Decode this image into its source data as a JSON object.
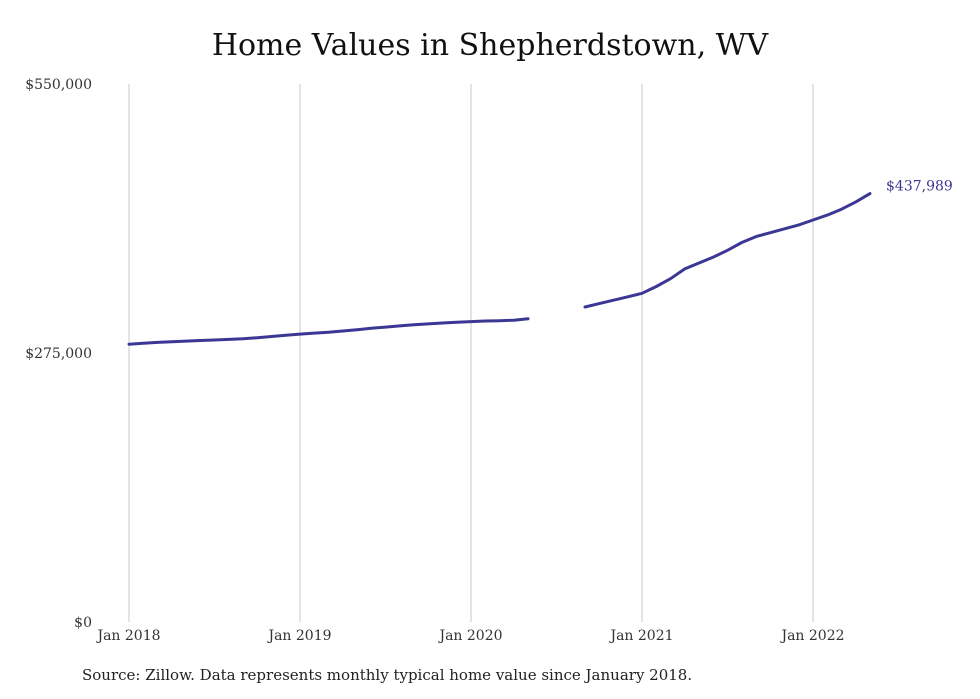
{
  "chart_data": {
    "type": "line",
    "title": "Home Values in Shepherdstown, WV",
    "xlabel": "",
    "ylabel": "",
    "x_ticks": [
      "Jan 2018",
      "Jan 2019",
      "Jan 2020",
      "Jan 2021",
      "Jan 2022"
    ],
    "y_ticks": [
      "$0",
      "$275,000",
      "$550,000"
    ],
    "ylim": [
      0,
      550000
    ],
    "xlim": [
      "2018-01",
      "2022-05"
    ],
    "grid": "vertical",
    "line_color": "#3b3794",
    "series": [
      {
        "segments": [
          {
            "x": [
              "2018-01",
              "2018-02",
              "2018-03",
              "2018-04",
              "2018-05",
              "2018-06",
              "2018-07",
              "2018-08",
              "2018-09",
              "2018-10",
              "2018-11",
              "2018-12",
              "2019-01",
              "2019-02",
              "2019-03",
              "2019-04",
              "2019-05",
              "2019-06",
              "2019-07",
              "2019-08",
              "2019-09",
              "2019-10",
              "2019-11",
              "2019-12",
              "2020-01",
              "2020-02",
              "2020-03",
              "2020-04",
              "2020-05"
            ],
            "y": [
              284000,
              285000,
              285800,
              286500,
              287200,
              287800,
              288300,
              288900,
              289500,
              290600,
              291900,
              293100,
              294300,
              295300,
              296300,
              297500,
              298800,
              300200,
              301500,
              302700,
              303800,
              304800,
              305700,
              306500,
              307100,
              307700,
              308000,
              308500,
              310000
            ]
          },
          {
            "x": [
              "2020-09",
              "2020-10",
              "2020-11",
              "2020-12",
              "2021-01",
              "2021-02",
              "2021-03",
              "2021-04",
              "2021-05",
              "2021-06",
              "2021-07",
              "2021-08",
              "2021-09",
              "2021-10",
              "2021-11",
              "2021-12",
              "2022-01",
              "2022-02",
              "2022-03",
              "2022-04",
              "2022-05"
            ],
            "y": [
              322000,
              325500,
              329000,
              332500,
              336000,
              343000,
              351000,
              361000,
              367000,
              373000,
              380000,
              388000,
              394000,
              398000,
              402000,
              406000,
              411000,
              416000,
              422000,
              429500,
              437989
            ]
          }
        ]
      }
    ],
    "end_label": "$437,989"
  },
  "footer": {
    "source": "Source: Zillow. Data represents monthly typical home value since January 2018."
  }
}
